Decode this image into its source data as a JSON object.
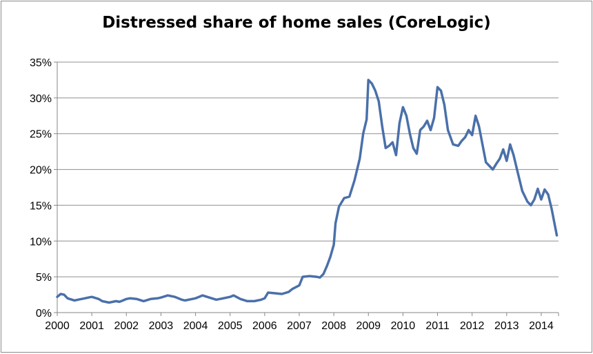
{
  "chart_data": {
    "type": "line",
    "title": "Distressed share of home sales (CoreLogic)",
    "xlabel": "",
    "ylabel": "",
    "xlim": [
      2000.0,
      2014.5
    ],
    "ylim": [
      0,
      35
    ],
    "grid": true,
    "legend": "none",
    "line_color": "#4a70aa",
    "grid_color": "#8f8f8f",
    "x_ticks": [
      2000,
      2001,
      2002,
      2003,
      2004,
      2005,
      2006,
      2007,
      2008,
      2009,
      2010,
      2011,
      2012,
      2013,
      2014
    ],
    "y_ticks": [
      {
        "value": 0,
        "label": "0%"
      },
      {
        "value": 5,
        "label": "5%"
      },
      {
        "value": 10,
        "label": "10%"
      },
      {
        "value": 15,
        "label": "15%"
      },
      {
        "value": 20,
        "label": "20%"
      },
      {
        "value": 25,
        "label": "25%"
      },
      {
        "value": 30,
        "label": "30%"
      },
      {
        "value": 35,
        "label": "35%"
      }
    ],
    "series": [
      {
        "x": [
          2000.0,
          2000.1,
          2000.2,
          2000.3,
          2000.5,
          2000.6,
          2000.8,
          2000.9,
          2001.0,
          2001.2,
          2001.3,
          2001.5,
          2001.7,
          2001.8,
          2001.9,
          2002.0,
          2002.1,
          2002.3,
          2002.5,
          2002.7,
          2002.9,
          2003.0,
          2003.2,
          2003.4,
          2003.6,
          2003.7,
          2003.9,
          2004.0,
          2004.1,
          2004.2,
          2004.4,
          2004.6,
          2004.8,
          2005.0,
          2005.1,
          2005.3,
          2005.5,
          2005.7,
          2005.9,
          2006.0,
          2006.1,
          2006.3,
          2006.5,
          2006.7,
          2006.8,
          2007.0,
          2007.1,
          2007.3,
          2007.5,
          2007.6,
          2007.7,
          2007.8,
          2007.9,
          2008.0,
          2008.05,
          2008.15,
          2008.3,
          2008.45,
          2008.6,
          2008.75,
          2008.85,
          2008.95,
          2009.0,
          2009.1,
          2009.2,
          2009.3,
          2009.4,
          2009.5,
          2009.6,
          2009.7,
          2009.8,
          2009.9,
          2010.0,
          2010.1,
          2010.2,
          2010.3,
          2010.4,
          2010.5,
          2010.6,
          2010.7,
          2010.8,
          2010.9,
          2011.0,
          2011.1,
          2011.2,
          2011.3,
          2011.45,
          2011.6,
          2011.7,
          2011.8,
          2011.9,
          2012.0,
          2012.1,
          2012.2,
          2012.3,
          2012.4,
          2012.5,
          2012.6,
          2012.7,
          2012.8,
          2012.9,
          2013.0,
          2013.1,
          2013.2,
          2013.3,
          2013.45,
          2013.6,
          2013.7,
          2013.8,
          2013.9,
          2014.0,
          2014.1,
          2014.2,
          2014.3,
          2014.45
        ],
        "values": [
          2.2,
          2.6,
          2.5,
          2.0,
          1.7,
          1.8,
          2.0,
          2.1,
          2.2,
          1.9,
          1.6,
          1.4,
          1.6,
          1.5,
          1.7,
          1.9,
          2.0,
          1.9,
          1.6,
          1.9,
          2.0,
          2.1,
          2.4,
          2.2,
          1.8,
          1.7,
          1.9,
          2.0,
          2.2,
          2.4,
          2.1,
          1.8,
          2.0,
          2.2,
          2.4,
          1.9,
          1.6,
          1.6,
          1.8,
          2.0,
          2.8,
          2.7,
          2.6,
          2.9,
          3.3,
          3.8,
          5.0,
          5.1,
          5.0,
          4.9,
          5.4,
          6.5,
          7.8,
          9.5,
          12.5,
          14.8,
          16.0,
          16.2,
          18.5,
          21.5,
          25.0,
          27.0,
          32.5,
          32.0,
          31.0,
          29.5,
          26.0,
          23.0,
          23.3,
          23.8,
          22.0,
          26.5,
          28.7,
          27.5,
          25.0,
          23.0,
          22.2,
          25.5,
          26.0,
          26.8,
          25.5,
          27.2,
          31.5,
          31.0,
          29.0,
          25.5,
          23.5,
          23.3,
          24.0,
          24.5,
          25.5,
          24.8,
          27.5,
          26.0,
          23.5,
          21.0,
          20.5,
          20.0,
          20.8,
          21.5,
          22.8,
          21.2,
          23.5,
          22.0,
          20.0,
          17.0,
          15.5,
          15.0,
          15.8,
          17.3,
          15.8,
          17.2,
          16.5,
          14.5,
          10.8
        ]
      }
    ]
  }
}
